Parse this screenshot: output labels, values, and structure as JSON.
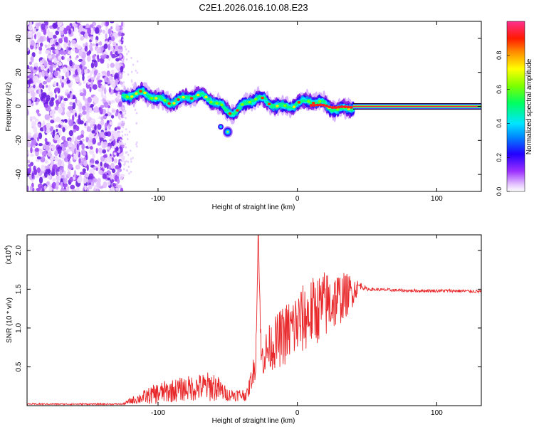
{
  "title": "C2E1.2026.016.10.08.E23",
  "chart_data": [
    {
      "type": "heatmap",
      "name": "spectrogram",
      "xlabel": "Height of straight line (km)",
      "ylabel": "Frequency (Hz)",
      "xlim": [
        -194,
        132
      ],
      "ylim": [
        -50,
        50
      ],
      "xticks": [
        -100,
        0,
        100
      ],
      "xtick_labels": [
        "-100",
        "0",
        "100"
      ],
      "yticks": [
        -40,
        -20,
        0,
        20,
        40
      ],
      "ytick_labels": [
        "-40",
        "-20",
        "0",
        "20",
        "40"
      ],
      "colorbar": {
        "label": "Normalized spectral amplitude",
        "range": [
          0,
          1
        ],
        "ticks": [
          0.0,
          0.2,
          0.4,
          0.6,
          0.8
        ],
        "tick_labels": [
          "0.0",
          "0.2",
          "0.4",
          "0.6",
          "0.8"
        ]
      },
      "regions": {
        "noise_scatter": {
          "x": [
            -194,
            -125
          ],
          "frequency": [
            -50,
            50
          ]
        },
        "signal_band": {
          "x": [
            -125,
            40
          ],
          "frequency_center": [
            6,
            0
          ]
        },
        "dip": {
          "x": [
            -55,
            -45
          ],
          "frequency": -15
        },
        "steady_line": {
          "x": [
            40,
            132
          ],
          "frequency": 0
        }
      }
    },
    {
      "type": "line",
      "name": "snr",
      "xlabel": "Height of straight line (km)",
      "ylabel": "SNR (10 * v/v)",
      "y_multiplier": "(x10",
      "y_multiplier_exp": "4",
      "y_multiplier_close": ")",
      "xlim": [
        -194,
        132
      ],
      "ylim": [
        0,
        2.2
      ],
      "xticks": [
        -100,
        0,
        100
      ],
      "xtick_labels": [
        "-100",
        "0",
        "100"
      ],
      "yticks": [
        0.5,
        1.0,
        1.5,
        2.0
      ],
      "ytick_labels": [
        "0.5",
        "1.0",
        "1.5",
        "2.0"
      ],
      "color": "#e8282a",
      "series_shape": {
        "x": [
          -194,
          -125,
          -120,
          -100,
          -80,
          -60,
          -50,
          -36,
          -30,
          -28,
          -26,
          -20,
          -10,
          0,
          10,
          20,
          30,
          38,
          45,
          50,
          80,
          110,
          132
        ],
        "y_base": [
          0.02,
          0.02,
          0.06,
          0.16,
          0.22,
          0.25,
          0.14,
          0.14,
          0.55,
          2.2,
          0.6,
          0.75,
          0.9,
          1.05,
          1.2,
          1.3,
          1.38,
          1.45,
          1.55,
          1.5,
          1.48,
          1.48,
          1.47
        ],
        "y_noise": [
          0.01,
          0.01,
          0.04,
          0.14,
          0.16,
          0.2,
          0.08,
          0.08,
          0.2,
          0,
          0.25,
          0.3,
          0.4,
          0.45,
          0.45,
          0.45,
          0.35,
          0.25,
          0.05,
          0.02,
          0.02,
          0.02,
          0.02
        ]
      }
    }
  ]
}
